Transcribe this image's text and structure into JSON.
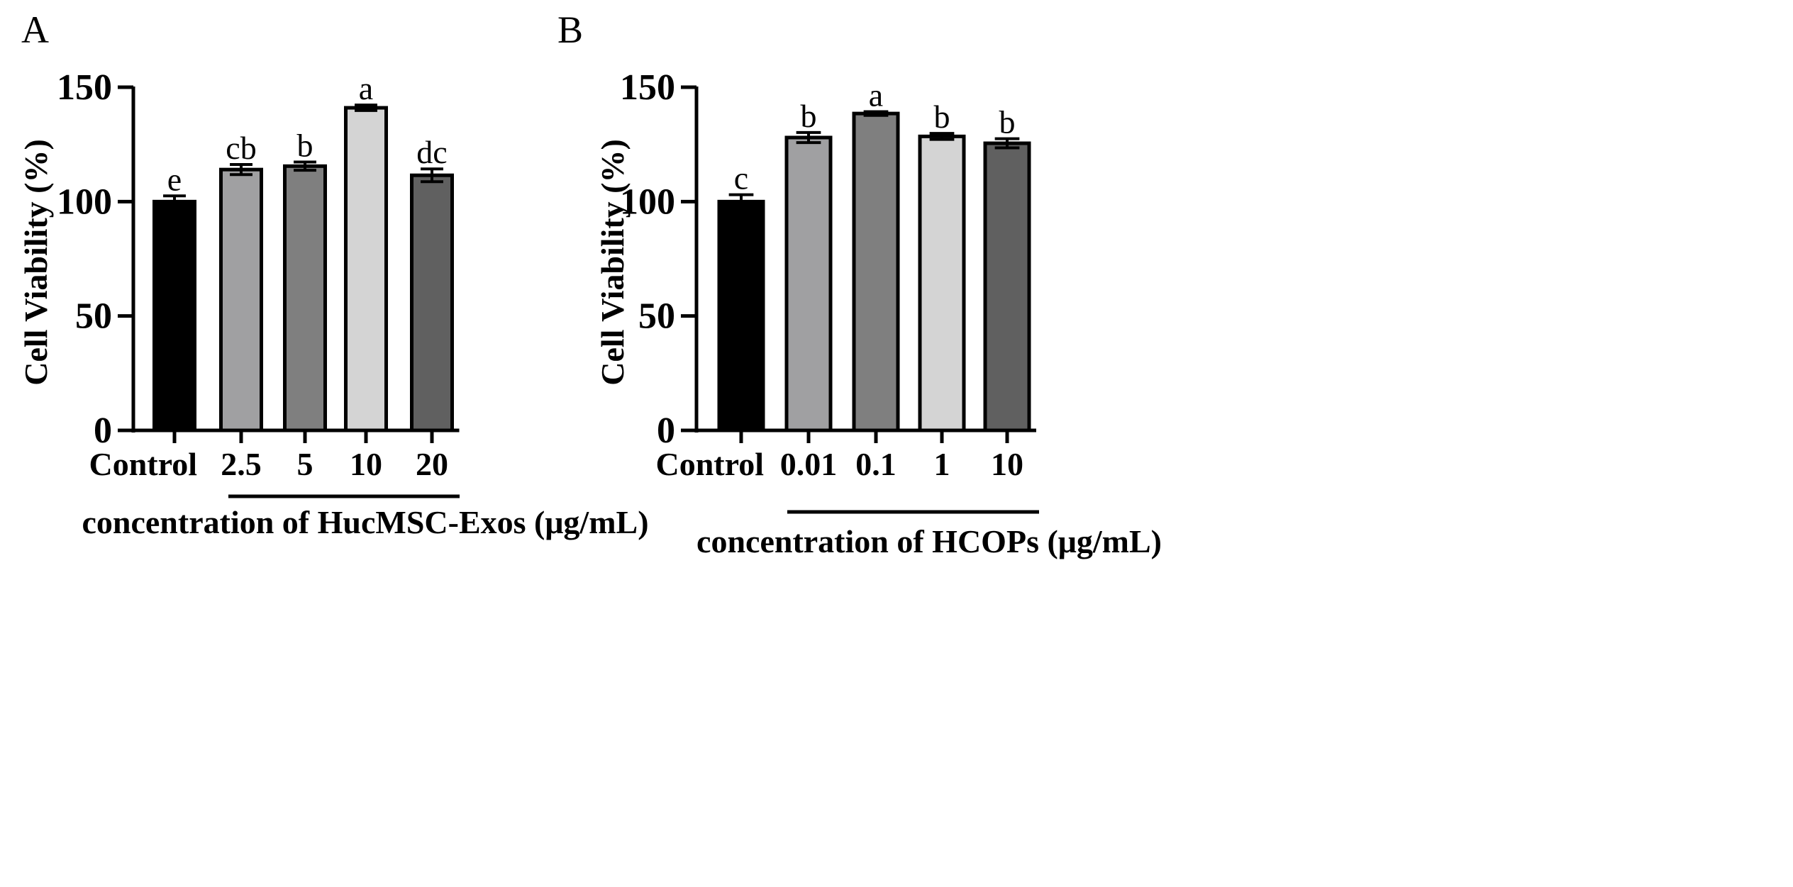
{
  "chart_data": [
    {
      "type": "bar",
      "panel": "A",
      "title": "",
      "xlabel": "concentration of HucMSC-Exos (μg/mL)",
      "ylabel": "Cell  Viability (%)",
      "ylim": [
        0,
        150
      ],
      "yticks": [
        0,
        50,
        100,
        150
      ],
      "categories": [
        "Control",
        "2.5",
        "5",
        "10",
        "20"
      ],
      "values": [
        100,
        114,
        115.5,
        141,
        111.5
      ],
      "errors": [
        2.5,
        2.2,
        1.8,
        1.2,
        2.8
      ],
      "significance": [
        "e",
        "cb",
        "b",
        "a",
        "dc"
      ],
      "colors": [
        "#000000",
        "#a0a0a2",
        "#7f7f7f",
        "#d4d4d4",
        "#606060"
      ]
    },
    {
      "type": "bar",
      "panel": "B",
      "title": "",
      "xlabel": "concentration of HCOPs (μg/mL)",
      "ylabel": "Cell  Viability (%)",
      "ylim": [
        0,
        150
      ],
      "yticks": [
        0,
        50,
        100,
        150
      ],
      "categories": [
        "Control",
        "0.01",
        "0.1",
        "1",
        "10"
      ],
      "values": [
        100,
        128,
        138.5,
        128.5,
        125.5
      ],
      "errors": [
        3.0,
        2.2,
        0.8,
        1.3,
        2.0
      ],
      "significance": [
        "c",
        "b",
        "a",
        "b",
        "b"
      ],
      "colors": [
        "#000000",
        "#a0a0a2",
        "#7f7f7f",
        "#d4d4d4",
        "#606060"
      ]
    }
  ]
}
